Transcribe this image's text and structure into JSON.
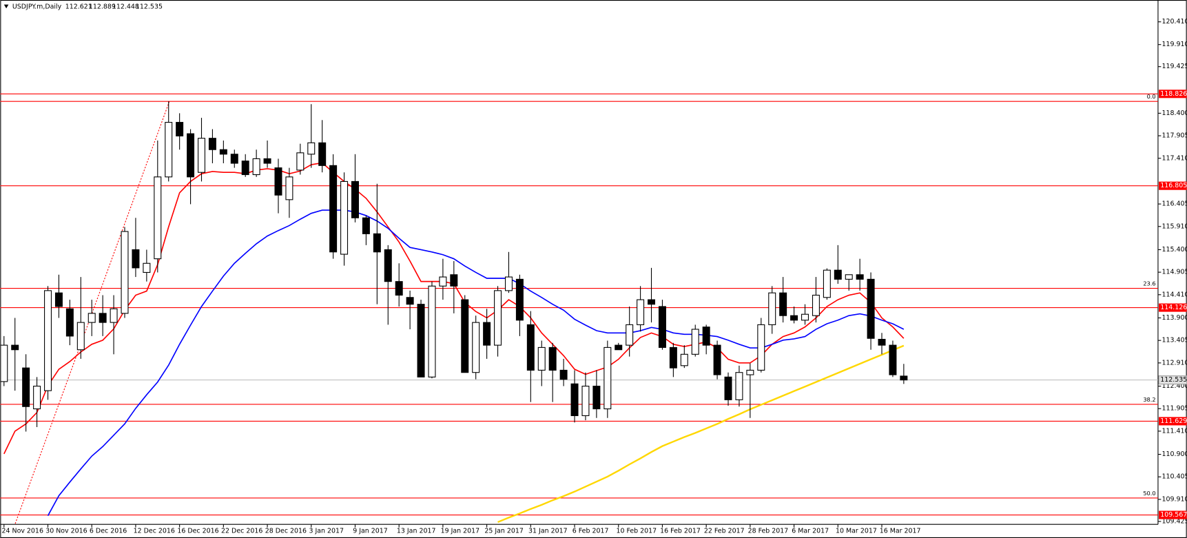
{
  "chart_data": {
    "type": "candlestick",
    "symbol": "USDJPY.m,Daily",
    "categories": [
      "24 Nov 2016",
      null,
      null,
      null,
      "30 Nov 2016",
      null,
      null,
      null,
      "6 Dec 2016",
      null,
      null,
      null,
      "12 Dec 2016",
      null,
      null,
      null,
      "16 Dec 2016",
      null,
      null,
      null,
      "22 Dec 2016",
      null,
      null,
      null,
      "28 Dec 2016",
      null,
      null,
      null,
      "3 Jan 2017",
      null,
      null,
      null,
      "9 Jan 2017",
      null,
      null,
      null,
      "13 Jan 2017",
      null,
      null,
      null,
      "19 Jan 2017",
      null,
      null,
      null,
      "25 Jan 2017",
      null,
      null,
      null,
      "31 Jan 2017",
      null,
      null,
      null,
      "6 Feb 2017",
      null,
      null,
      null,
      "10 Feb 2017",
      null,
      null,
      null,
      "16 Feb 2017",
      null,
      null,
      null,
      "22 Feb 2017",
      null,
      null,
      null,
      "28 Feb 2017",
      null,
      null,
      null,
      "6 Mar 2017",
      null,
      null,
      null,
      "10 Mar 2017",
      null,
      null,
      null,
      "16 Mar 2017",
      null,
      null
    ],
    "open": [
      112.5,
      113.3,
      112.8,
      111.9,
      112.3,
      114.45,
      114.1,
      113.2,
      113.8,
      114.0,
      113.8,
      114.0,
      115.4,
      114.9,
      115.2,
      117.0,
      118.2,
      117.95,
      117.1,
      117.85,
      117.6,
      117.5,
      117.35,
      117.05,
      117.4,
      117.2,
      116.5,
      117.15,
      117.5,
      117.75,
      117.25,
      115.3,
      116.9,
      116.1,
      115.75,
      115.4,
      114.7,
      114.35,
      114.2,
      112.6,
      114.6,
      114.85,
      114.3,
      112.7,
      113.8,
      113.3,
      114.5,
      114.75,
      113.75,
      112.75,
      113.25,
      112.75,
      112.45,
      111.75,
      112.4,
      111.9,
      113.3,
      113.3,
      113.75,
      114.3,
      114.15,
      113.25,
      112.85,
      113.1,
      113.7,
      113.3,
      112.6,
      112.1,
      112.65,
      112.75,
      113.75,
      114.45,
      113.95,
      113.85,
      113.95,
      114.35,
      114.95,
      114.75,
      114.85,
      114.75,
      113.43,
      113.3,
      112.621
    ],
    "high": [
      113.5,
      113.9,
      113.1,
      112.6,
      114.6,
      114.85,
      114.3,
      114.8,
      114.3,
      114.4,
      114.4,
      115.9,
      116.1,
      115.4,
      117.8,
      118.66,
      118.4,
      118.05,
      118.3,
      118.05,
      117.8,
      117.6,
      117.5,
      117.6,
      117.8,
      117.4,
      117.2,
      117.73,
      118.6,
      118.25,
      117.5,
      117.1,
      117.5,
      116.15,
      116.85,
      115.5,
      115.1,
      114.5,
      114.3,
      114.7,
      115.2,
      115.15,
      114.4,
      113.95,
      114.1,
      114.6,
      115.35,
      114.85,
      114.05,
      113.4,
      113.35,
      113.0,
      112.75,
      112.7,
      112.75,
      113.4,
      113.35,
      114.15,
      114.6,
      115.0,
      114.3,
      113.35,
      113.3,
      113.75,
      113.75,
      113.4,
      112.7,
      112.85,
      112.9,
      113.9,
      114.6,
      114.8,
      114.15,
      114.2,
      114.8,
      114.99,
      115.5,
      114.85,
      115.2,
      114.9,
      113.57,
      113.4,
      112.889
    ],
    "low": [
      112.4,
      112.3,
      111.4,
      111.5,
      112.1,
      113.9,
      113.3,
      113.0,
      113.5,
      113.5,
      113.1,
      113.9,
      114.8,
      114.7,
      114.9,
      116.9,
      117.6,
      116.4,
      116.9,
      117.3,
      117.3,
      117.2,
      117.0,
      117.0,
      117.2,
      116.2,
      116.1,
      117.05,
      117.2,
      117.1,
      115.2,
      115.05,
      116.0,
      115.5,
      114.2,
      113.75,
      114.15,
      113.65,
      112.6,
      112.57,
      114.3,
      114.0,
      112.7,
      112.55,
      113.0,
      113.05,
      114.45,
      113.5,
      112.05,
      112.4,
      112.05,
      112.4,
      111.6,
      111.65,
      111.7,
      111.7,
      113.2,
      113.05,
      113.6,
      113.8,
      113.2,
      112.6,
      112.8,
      113.05,
      113.1,
      112.55,
      111.97,
      111.95,
      111.7,
      112.7,
      113.55,
      113.8,
      113.78,
      113.75,
      113.8,
      114.3,
      114.65,
      114.5,
      114.5,
      113.2,
      113.1,
      112.6,
      112.448
    ],
    "close": [
      113.3,
      113.2,
      111.95,
      112.4,
      114.5,
      114.15,
      113.5,
      113.8,
      114.0,
      113.8,
      114.1,
      115.8,
      115.0,
      115.1,
      117.0,
      118.2,
      117.9,
      117.0,
      117.85,
      117.6,
      117.5,
      117.3,
      117.05,
      117.4,
      117.3,
      116.6,
      117.0,
      117.53,
      117.75,
      117.25,
      115.35,
      116.9,
      116.1,
      115.75,
      115.35,
      114.7,
      114.4,
      114.2,
      112.6,
      114.6,
      114.8,
      114.6,
      112.7,
      113.8,
      113.3,
      114.5,
      114.8,
      113.85,
      112.75,
      113.25,
      112.75,
      112.55,
      111.75,
      112.4,
      111.9,
      113.25,
      113.2,
      113.75,
      114.3,
      114.2,
      113.25,
      112.8,
      113.1,
      113.65,
      113.3,
      112.65,
      112.1,
      112.7,
      112.75,
      113.75,
      114.45,
      113.95,
      113.85,
      113.98,
      114.4,
      114.95,
      114.75,
      114.85,
      114.75,
      113.45,
      113.3,
      112.65,
      112.535
    ],
    "up_color": "#ffffff",
    "down_color": "#000000",
    "lines": [
      {
        "color": "#ff0000",
        "values": [
          110.91,
          111.41,
          111.57,
          111.82,
          112.41,
          112.77,
          112.94,
          113.15,
          113.32,
          113.41,
          113.66,
          114.07,
          114.4,
          114.49,
          115.07,
          115.9,
          116.65,
          116.9,
          117.07,
          117.12,
          117.1,
          117.1,
          117.07,
          117.15,
          117.18,
          117.15,
          117.07,
          117.13,
          117.27,
          117.31,
          117.1,
          116.9,
          116.73,
          116.53,
          116.23,
          115.9,
          115.57,
          115.15,
          114.7,
          114.7,
          114.7,
          114.65,
          114.24,
          114.04,
          113.9,
          114.07,
          114.3,
          114.15,
          113.9,
          113.57,
          113.32,
          113.07,
          112.77,
          112.66,
          112.74,
          112.82,
          112.99,
          113.24,
          113.47,
          113.57,
          113.49,
          113.32,
          113.27,
          113.32,
          113.37,
          113.24,
          112.99,
          112.91,
          112.91,
          113.07,
          113.32,
          113.49,
          113.57,
          113.7,
          113.9,
          114.15,
          114.3,
          114.4,
          114.45,
          114.24,
          113.9,
          113.7,
          113.45
        ]
      },
      {
        "color": "#0000ff",
        "values": [
          null,
          null,
          null,
          null,
          109.55,
          109.99,
          110.29,
          110.58,
          110.86,
          111.07,
          111.32,
          111.57,
          111.91,
          112.21,
          112.49,
          112.86,
          113.32,
          113.74,
          114.15,
          114.49,
          114.82,
          115.1,
          115.32,
          115.53,
          115.7,
          115.82,
          115.93,
          116.07,
          116.2,
          116.27,
          116.27,
          116.27,
          116.23,
          116.15,
          116.03,
          115.87,
          115.65,
          115.45,
          115.4,
          115.35,
          115.29,
          115.2,
          115.04,
          114.9,
          114.77,
          114.77,
          114.77,
          114.65,
          114.49,
          114.35,
          114.2,
          114.07,
          113.87,
          113.74,
          113.62,
          113.57,
          113.57,
          113.57,
          113.62,
          113.69,
          113.65,
          113.57,
          113.54,
          113.54,
          113.52,
          113.49,
          113.41,
          113.32,
          113.24,
          113.24,
          113.32,
          113.41,
          113.44,
          113.49,
          113.65,
          113.77,
          113.85,
          113.95,
          113.99,
          113.94,
          113.85,
          113.77,
          113.65
        ]
      },
      {
        "color": "#ffd700",
        "values": [
          null,
          null,
          null,
          null,
          null,
          null,
          null,
          null,
          null,
          null,
          null,
          null,
          null,
          null,
          null,
          null,
          null,
          null,
          null,
          null,
          null,
          null,
          null,
          null,
          null,
          null,
          null,
          null,
          null,
          null,
          null,
          null,
          null,
          null,
          null,
          null,
          null,
          null,
          null,
          null,
          null,
          null,
          null,
          null,
          null,
          109.41,
          109.51,
          109.6,
          109.7,
          109.79,
          109.89,
          109.98,
          110.08,
          110.19,
          110.3,
          110.41,
          110.54,
          110.68,
          110.81,
          110.95,
          111.08,
          111.18,
          111.28,
          111.37,
          111.47,
          111.57,
          111.68,
          111.78,
          111.89,
          111.99,
          112.09,
          112.19,
          112.29,
          112.39,
          112.49,
          112.59,
          112.69,
          112.79,
          112.89,
          112.99,
          113.09,
          113.19,
          113.29
        ]
      }
    ],
    "price_levels": [
      118.826,
      116.805,
      114.126,
      111.629,
      109.567
    ],
    "level_color": "#ff0000",
    "fib_levels": [
      {
        "value": 118.66,
        "label": "0.0"
      },
      {
        "value": 114.55,
        "label": "23.6"
      },
      {
        "value": 112.0,
        "label": "38.2"
      },
      {
        "value": 109.94,
        "label": "50.0"
      }
    ],
    "ylim": [
      109.36,
      120.89
    ],
    "yticks": [
      {
        "value": 120.41,
        "label": "120.410"
      },
      {
        "value": 119.91,
        "label": "119.910"
      },
      119.425,
      {
        "value": 118.4,
        "label": "118.400"
      },
      117.905,
      {
        "value": 117.41,
        "label": "117.410"
      },
      116.405,
      {
        "value": 115.91,
        "label": "115.910"
      },
      {
        "value": 115.4,
        "label": "115.400"
      },
      114.905,
      {
        "value": 114.41,
        "label": "114.410"
      },
      {
        "value": 113.9,
        "label": "113.900"
      },
      113.405,
      {
        "value": 112.91,
        "label": "112.910"
      },
      {
        "value": 112.4,
        "label": "112.400"
      },
      111.905,
      {
        "value": 111.41,
        "label": "111.410"
      },
      {
        "value": 110.9,
        "label": "110.900"
      },
      110.405,
      {
        "value": 109.91,
        "label": "109.910"
      },
      109.425
    ]
  }
}
